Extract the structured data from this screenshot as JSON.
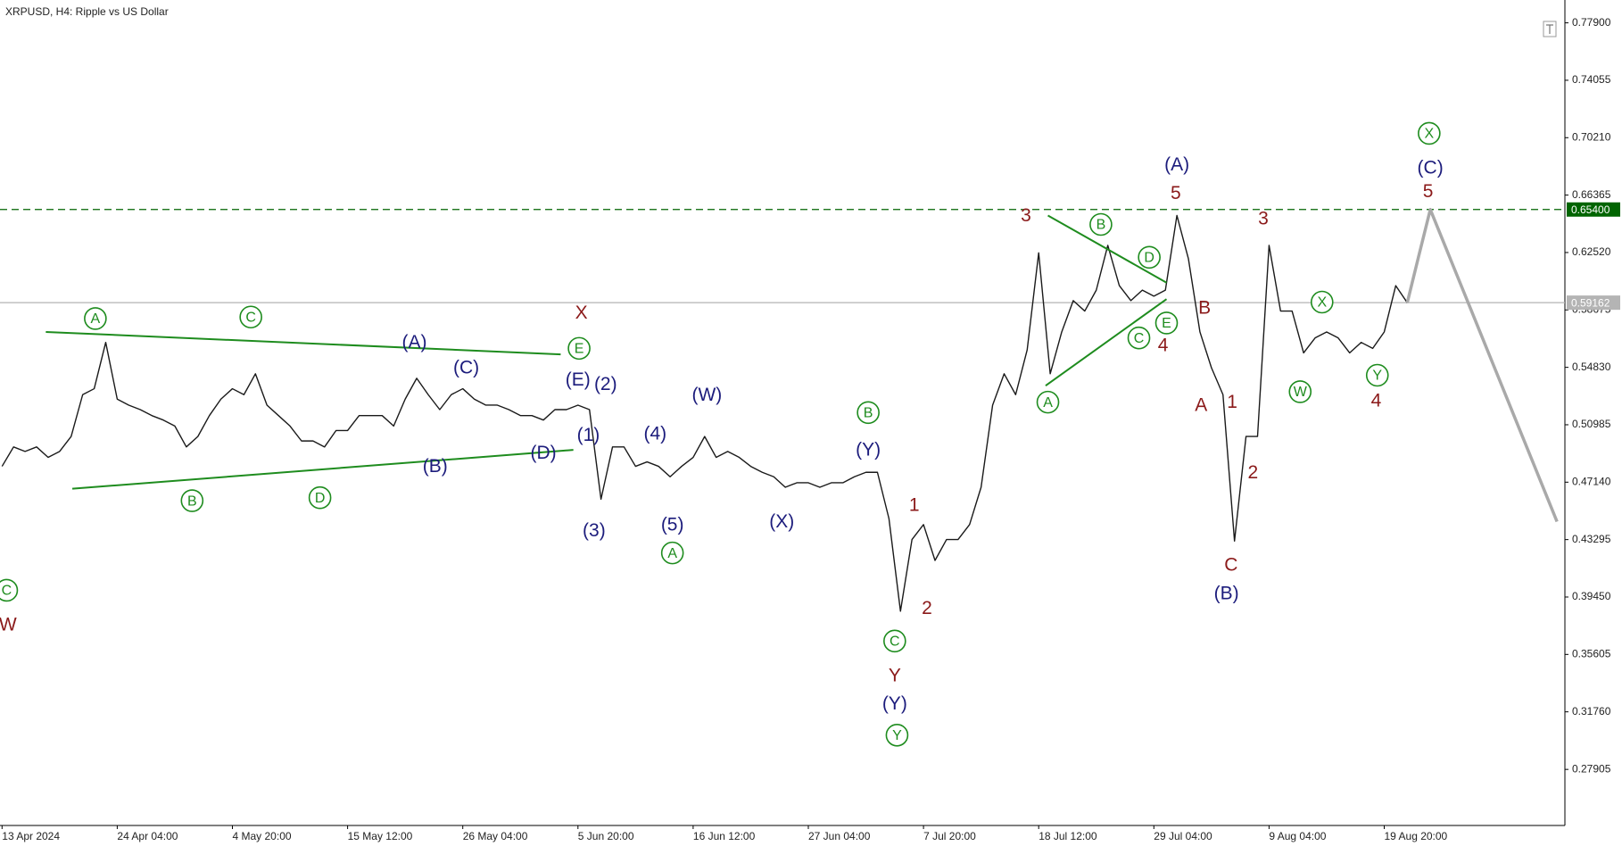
{
  "chart_data": {
    "type": "line",
    "title": "XRPUSD, H4:  Ripple vs US Dollar",
    "categories": [
      "13 Apr 2024",
      null,
      null,
      null,
      null,
      null,
      null,
      null,
      null,
      null,
      "24 Apr 04:00",
      null,
      null,
      null,
      null,
      null,
      null,
      null,
      null,
      null,
      "4 May 20:00",
      null,
      null,
      null,
      null,
      null,
      null,
      null,
      null,
      null,
      "15 May 12:00",
      null,
      null,
      null,
      null,
      null,
      null,
      null,
      null,
      null,
      "26 May 04:00",
      null,
      null,
      null,
      null,
      null,
      null,
      null,
      null,
      null,
      "5 Jun 20:00",
      null,
      null,
      null,
      null,
      null,
      null,
      null,
      null,
      null,
      "16 Jun 12:00",
      null,
      null,
      null,
      null,
      null,
      null,
      null,
      null,
      null,
      "27 Jun 04:00",
      null,
      null,
      null,
      null,
      null,
      null,
      null,
      null,
      null,
      "7 Jul 20:00",
      null,
      null,
      null,
      null,
      null,
      null,
      null,
      null,
      null,
      "18 Jul 12:00",
      null,
      null,
      null,
      null,
      null,
      null,
      null,
      null,
      null,
      "29 Jul 04:00",
      null,
      null,
      null,
      null,
      null,
      null,
      null,
      null,
      null,
      "9 Aug 04:00",
      null,
      null,
      null,
      null,
      null,
      null,
      null,
      null,
      null,
      "19 Aug 20:00",
      null,
      null,
      null,
      null,
      null,
      null,
      null,
      null,
      null,
      null,
      null,
      null,
      null,
      null,
      null
    ],
    "series": [
      {
        "color": "#1a1a1a",
        "width": 1.4,
        "values": [
          0.482,
          0.495,
          0.492,
          0.495,
          0.488,
          0.492,
          0.502,
          0.53,
          0.534,
          0.565,
          0.527,
          0.523,
          0.52,
          0.516,
          0.513,
          0.509,
          0.495,
          0.502,
          0.516,
          0.527,
          0.534,
          0.53,
          0.544,
          0.523,
          0.516,
          0.509,
          0.499,
          0.499,
          0.495,
          0.506,
          0.506,
          0.516,
          0.516,
          0.516,
          0.509,
          0.527,
          0.541,
          0.53,
          0.52,
          0.53,
          0.534,
          0.527,
          0.523,
          0.523,
          0.52,
          0.516,
          0.516,
          0.513,
          0.52,
          0.52,
          0.523,
          0.52,
          0.46,
          0.495,
          0.495,
          0.482,
          0.485,
          0.482,
          0.475,
          0.482,
          0.488,
          0.502,
          0.488,
          0.492,
          0.488,
          0.482,
          0.478,
          0.475,
          0.468,
          0.471,
          0.471,
          0.468,
          0.471,
          0.471,
          0.475,
          0.478,
          0.478,
          0.447,
          0.385,
          0.433,
          0.443,
          0.419,
          0.433,
          0.433,
          0.443,
          0.468,
          0.523,
          0.544,
          0.53,
          0.56,
          0.625,
          0.544,
          0.572,
          0.593,
          0.586,
          0.6,
          0.63,
          0.603,
          0.593,
          0.6,
          0.596,
          0.6,
          0.65,
          0.621,
          0.572,
          0.548,
          0.53,
          0.432,
          0.502,
          0.502,
          0.63,
          0.586,
          0.586,
          0.558,
          0.568,
          0.572,
          0.568,
          0.558,
          0.565,
          0.561,
          0.572,
          0.603,
          0.5916,
          null,
          null,
          null,
          null,
          null,
          null,
          null,
          null,
          null,
          null,
          null,
          null,
          null
        ]
      },
      {
        "color": "#a9a9a9",
        "width": 3.5,
        "values": [
          null,
          null,
          null,
          null,
          null,
          null,
          null,
          null,
          null,
          null,
          null,
          null,
          null,
          null,
          null,
          null,
          null,
          null,
          null,
          null,
          null,
          null,
          null,
          null,
          null,
          null,
          null,
          null,
          null,
          null,
          null,
          null,
          null,
          null,
          null,
          null,
          null,
          null,
          null,
          null,
          null,
          null,
          null,
          null,
          null,
          null,
          null,
          null,
          null,
          null,
          null,
          null,
          null,
          null,
          null,
          null,
          null,
          null,
          null,
          null,
          null,
          null,
          null,
          null,
          null,
          null,
          null,
          null,
          null,
          null,
          null,
          null,
          null,
          null,
          null,
          null,
          null,
          null,
          null,
          null,
          null,
          null,
          null,
          null,
          null,
          null,
          null,
          null,
          null,
          null,
          null,
          null,
          null,
          null,
          null,
          null,
          null,
          null,
          null,
          null,
          null,
          null,
          null,
          null,
          null,
          null,
          null,
          null,
          null,
          null,
          null,
          null,
          null,
          null,
          null,
          null,
          null,
          null,
          null,
          null,
          null,
          null,
          0.5916,
          0.623,
          0.654,
          0.635,
          0.616,
          0.597,
          0.578,
          0.559,
          0.54,
          0.521,
          0.502,
          0.483,
          0.464,
          0.445
        ]
      }
    ],
    "ylim": [
      0.2415,
      0.7943
    ],
    "yticks": [
      {
        "value": 0.779,
        "label": "0.77900"
      },
      {
        "value": 0.74055,
        "label": "0.74055"
      },
      {
        "value": 0.7021,
        "label": "0.70210"
      },
      {
        "value": 0.66365,
        "label": "0.66365"
      },
      {
        "value": 0.6252,
        "label": "0.62520"
      },
      {
        "value": 0.58675,
        "label": "0.58675"
      },
      {
        "value": 0.5483,
        "label": "0.54830"
      },
      {
        "value": 0.50985,
        "label": "0.50985"
      },
      {
        "value": 0.4714,
        "label": "0.47140"
      },
      {
        "value": 0.43295,
        "label": "0.43295"
      },
      {
        "value": 0.3945,
        "label": "0.39450"
      },
      {
        "value": 0.35605,
        "label": "0.35605"
      },
      {
        "value": 0.3176,
        "label": "0.31760"
      },
      {
        "value": 0.27905,
        "label": "0.27905"
      }
    ],
    "levels": [
      {
        "value": 0.654,
        "label": "0.65400",
        "color": "#006400",
        "dashed": true
      },
      {
        "value": 0.59162,
        "label": "0.59162",
        "color": "#b4b4b4",
        "dashed": false
      }
    ],
    "trendlines": [
      {
        "color": "#1e8c1e",
        "x": [
          3.8,
          48.5
        ],
        "y": [
          0.572,
          0.557
        ]
      },
      {
        "color": "#1e8c1e",
        "x": [
          6.1,
          49.6
        ],
        "y": [
          0.467,
          0.493
        ]
      },
      {
        "color": "#1e8c1e",
        "x": [
          90.8,
          101.1
        ],
        "y": [
          0.65,
          0.605
        ]
      },
      {
        "color": "#1e8c1e",
        "x": [
          90.6,
          101.1
        ],
        "y": [
          0.536,
          0.594
        ]
      }
    ],
    "annotations": [
      {
        "text": "C",
        "x": 0.4,
        "y": 0.399,
        "color": "#1e8c1e",
        "circled": true
      },
      {
        "text": "W",
        "x": 0.5,
        "y": 0.376,
        "color": "#8b1a1a",
        "circled": false
      },
      {
        "text": "A",
        "x": 8.1,
        "y": 0.581,
        "color": "#1e8c1e",
        "circled": true
      },
      {
        "text": "B",
        "x": 16.5,
        "y": 0.459,
        "color": "#1e8c1e",
        "circled": true
      },
      {
        "text": "C",
        "x": 21.6,
        "y": 0.582,
        "color": "#1e8c1e",
        "circled": true
      },
      {
        "text": "D",
        "x": 27.6,
        "y": 0.461,
        "color": "#1e8c1e",
        "circled": true
      },
      {
        "text": "(A)",
        "x": 35.8,
        "y": 0.565,
        "color": "#1c1c7c",
        "circled": false
      },
      {
        "text": "(B)",
        "x": 37.6,
        "y": 0.482,
        "color": "#1c1c7c",
        "circled": false
      },
      {
        "text": "(C)",
        "x": 40.3,
        "y": 0.548,
        "color": "#1c1c7c",
        "circled": false
      },
      {
        "text": "(D)",
        "x": 47.0,
        "y": 0.491,
        "color": "#1c1c7c",
        "circled": false
      },
      {
        "text": "E",
        "x": 50.1,
        "y": 0.561,
        "color": "#1e8c1e",
        "circled": true
      },
      {
        "text": "X",
        "x": 50.3,
        "y": 0.585,
        "color": "#8b1a1a",
        "circled": false
      },
      {
        "text": "(E)",
        "x": 50.0,
        "y": 0.54,
        "color": "#1c1c7c",
        "circled": false
      },
      {
        "text": "(2)",
        "x": 52.4,
        "y": 0.537,
        "color": "#1c1c7c",
        "circled": false
      },
      {
        "text": "(1)",
        "x": 50.9,
        "y": 0.503,
        "color": "#1c1c7c",
        "circled": false
      },
      {
        "text": "(3)",
        "x": 51.4,
        "y": 0.439,
        "color": "#1c1c7c",
        "circled": false
      },
      {
        "text": "(4)",
        "x": 56.7,
        "y": 0.504,
        "color": "#1c1c7c",
        "circled": false
      },
      {
        "text": "(5)",
        "x": 58.2,
        "y": 0.443,
        "color": "#1c1c7c",
        "circled": false
      },
      {
        "text": "A",
        "x": 58.2,
        "y": 0.424,
        "color": "#1e8c1e",
        "circled": true
      },
      {
        "text": "(W)",
        "x": 61.2,
        "y": 0.53,
        "color": "#1c1c7c",
        "circled": false
      },
      {
        "text": "(X)",
        "x": 67.7,
        "y": 0.445,
        "color": "#1c1c7c",
        "circled": false
      },
      {
        "text": "B",
        "x": 75.2,
        "y": 0.518,
        "color": "#1e8c1e",
        "circled": true
      },
      {
        "text": "(Y)",
        "x": 75.2,
        "y": 0.493,
        "color": "#1c1c7c",
        "circled": false
      },
      {
        "text": "1",
        "x": 79.2,
        "y": 0.456,
        "color": "#8b1a1a",
        "circled": false
      },
      {
        "text": "2",
        "x": 80.3,
        "y": 0.387,
        "color": "#8b1a1a",
        "circled": false
      },
      {
        "text": "C",
        "x": 77.5,
        "y": 0.365,
        "color": "#1e8c1e",
        "circled": true
      },
      {
        "text": "Y",
        "x": 77.5,
        "y": 0.342,
        "color": "#8b1a1a",
        "circled": false
      },
      {
        "text": "(Y)",
        "x": 77.5,
        "y": 0.323,
        "color": "#1c1c7c",
        "circled": false
      },
      {
        "text": "Y",
        "x": 77.7,
        "y": 0.302,
        "color": "#1e8c1e",
        "circled": true
      },
      {
        "text": "3",
        "x": 88.9,
        "y": 0.65,
        "color": "#8b1a1a",
        "circled": false
      },
      {
        "text": "A",
        "x": 90.8,
        "y": 0.525,
        "color": "#1e8c1e",
        "circled": true
      },
      {
        "text": "B",
        "x": 95.4,
        "y": 0.644,
        "color": "#1e8c1e",
        "circled": true
      },
      {
        "text": "D",
        "x": 99.6,
        "y": 0.622,
        "color": "#1e8c1e",
        "circled": true
      },
      {
        "text": "E",
        "x": 101.1,
        "y": 0.578,
        "color": "#1e8c1e",
        "circled": true
      },
      {
        "text": "C",
        "x": 98.7,
        "y": 0.568,
        "color": "#1e8c1e",
        "circled": true
      },
      {
        "text": "4",
        "x": 100.8,
        "y": 0.563,
        "color": "#8b1a1a",
        "circled": false
      },
      {
        "text": "(A)",
        "x": 102.0,
        "y": 0.684,
        "color": "#1c1c7c",
        "circled": false
      },
      {
        "text": "5",
        "x": 101.9,
        "y": 0.665,
        "color": "#8b1a1a",
        "circled": false
      },
      {
        "text": "B",
        "x": 104.4,
        "y": 0.588,
        "color": "#8b1a1a",
        "circled": false
      },
      {
        "text": "A",
        "x": 104.1,
        "y": 0.523,
        "color": "#8b1a1a",
        "circled": false
      },
      {
        "text": "1",
        "x": 106.8,
        "y": 0.525,
        "color": "#8b1a1a",
        "circled": false
      },
      {
        "text": "2",
        "x": 108.6,
        "y": 0.478,
        "color": "#8b1a1a",
        "circled": false
      },
      {
        "text": "C",
        "x": 106.7,
        "y": 0.416,
        "color": "#8b1a1a",
        "circled": false
      },
      {
        "text": "(B)",
        "x": 106.3,
        "y": 0.397,
        "color": "#1c1c7c",
        "circled": false
      },
      {
        "text": "3",
        "x": 109.5,
        "y": 0.648,
        "color": "#8b1a1a",
        "circled": false
      },
      {
        "text": "X",
        "x": 114.6,
        "y": 0.592,
        "color": "#1e8c1e",
        "circled": true
      },
      {
        "text": "W",
        "x": 112.7,
        "y": 0.532,
        "color": "#1e8c1e",
        "circled": true
      },
      {
        "text": "Y",
        "x": 119.4,
        "y": 0.543,
        "color": "#1e8c1e",
        "circled": true
      },
      {
        "text": "4",
        "x": 119.3,
        "y": 0.526,
        "color": "#8b1a1a",
        "circled": false
      },
      {
        "text": "X",
        "x": 123.9,
        "y": 0.705,
        "color": "#1e8c1e",
        "circled": true
      },
      {
        "text": "(C)",
        "x": 124.0,
        "y": 0.682,
        "color": "#1c1c7c",
        "circled": false
      },
      {
        "text": "5",
        "x": 123.8,
        "y": 0.666,
        "color": "#8b1a1a",
        "circled": false
      }
    ]
  }
}
